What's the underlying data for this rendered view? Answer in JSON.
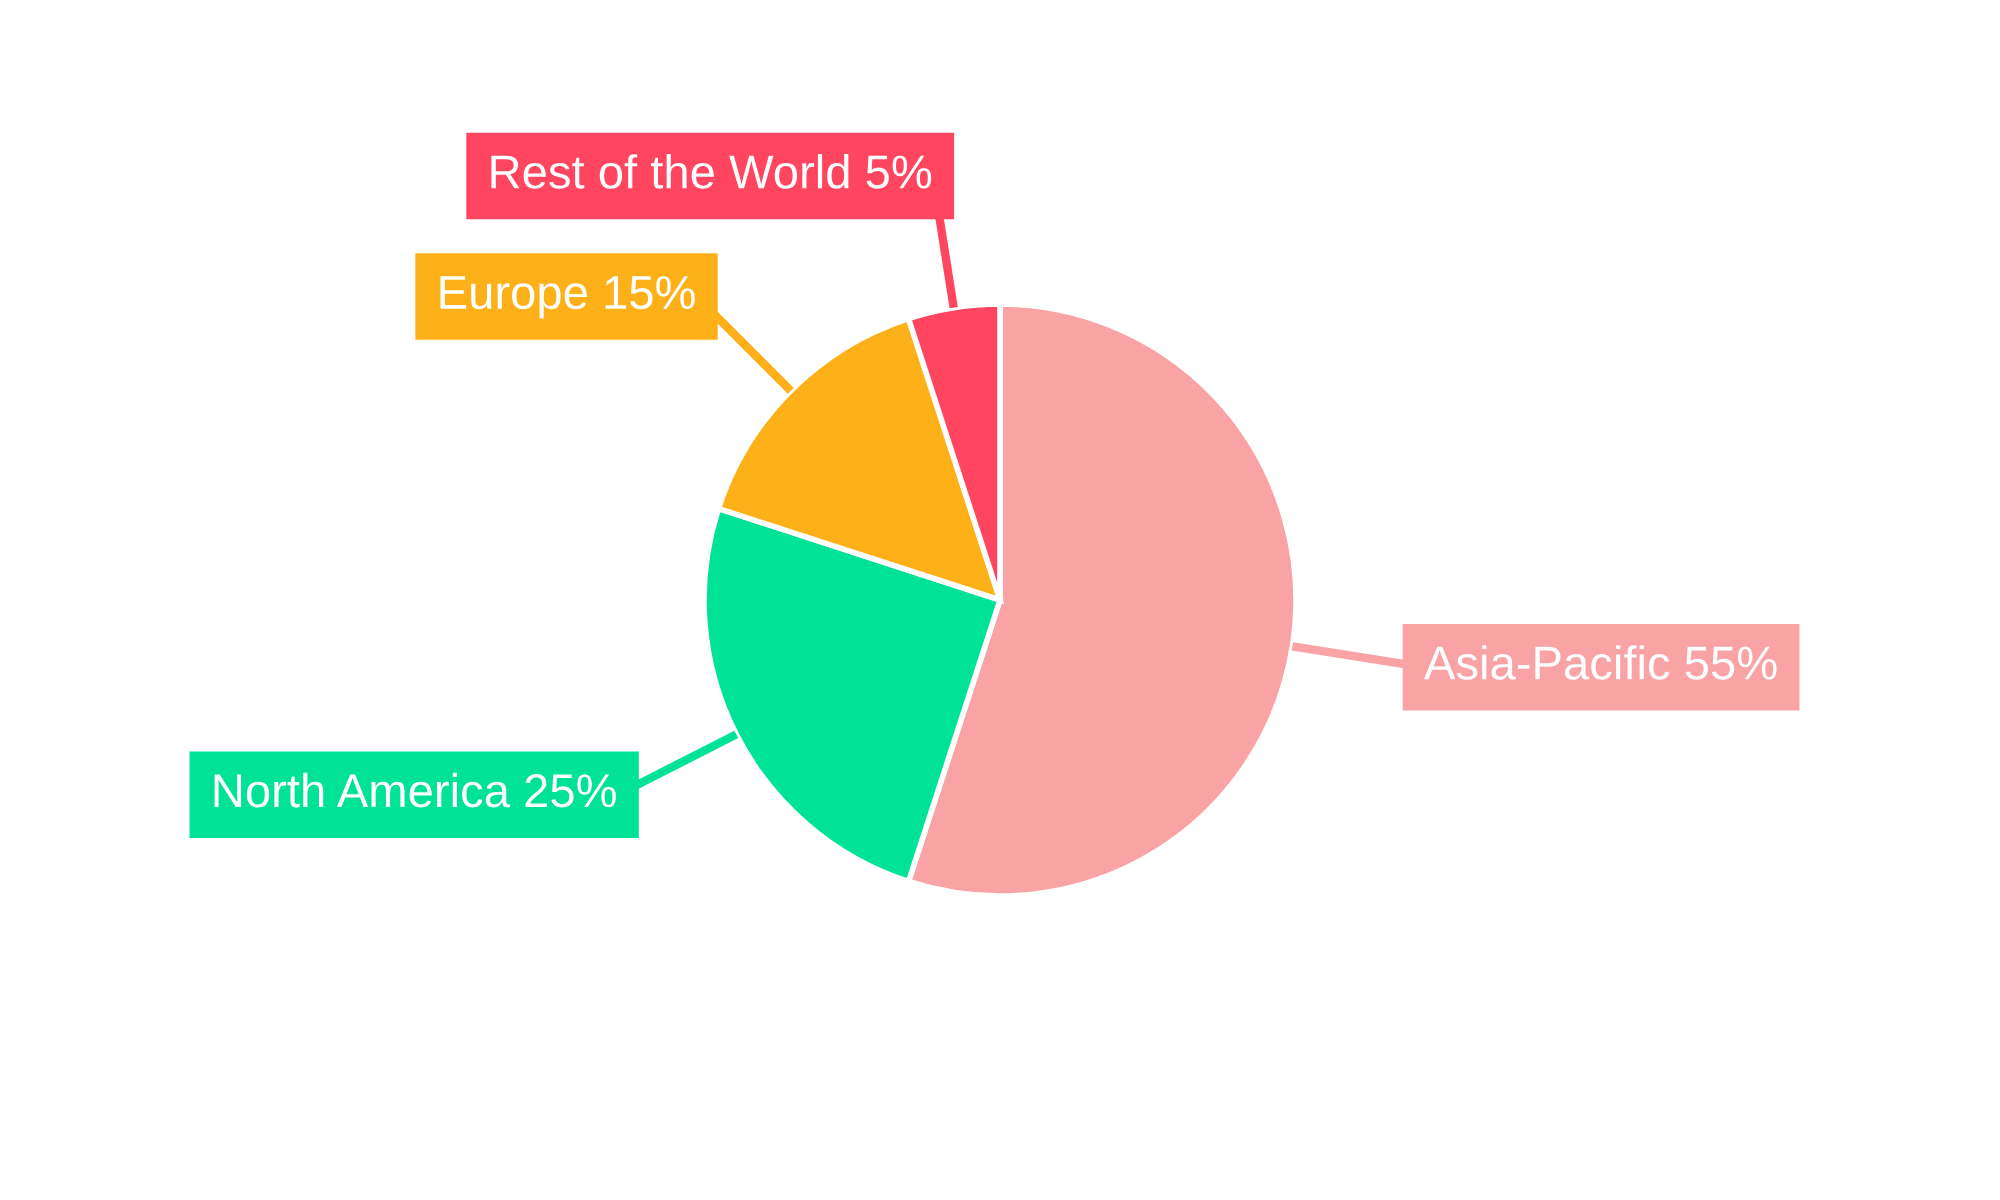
{
  "chart_data": {
    "type": "pie",
    "categories": [
      "Asia-Pacific",
      "North America",
      "Europe",
      "Rest of the World"
    ],
    "values": [
      55,
      25,
      15,
      5
    ],
    "value_labels": [
      "55%",
      "25%",
      "15%",
      "5%"
    ],
    "colors": [
      "#f9a3a4",
      "#00e396",
      "#feb019",
      "#ff4560"
    ]
  }
}
